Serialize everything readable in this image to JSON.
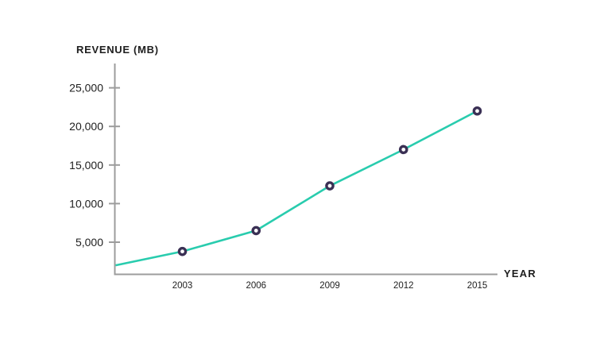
{
  "chart_data": {
    "type": "line",
    "title": "REVENUE (MB)",
    "xlabel": "YEAR",
    "ylabel": "REVENUE (MB)",
    "categories": [
      "2003",
      "2006",
      "2009",
      "2012",
      "2015"
    ],
    "series": [
      {
        "name": "Revenue (MB)",
        "values": [
          3800,
          6500,
          12300,
          17000,
          22000
        ]
      }
    ],
    "axis_edge_start_value": 2000,
    "yticks": [
      5000,
      10000,
      15000,
      20000,
      25000
    ],
    "ytick_labels": [
      "5,000",
      "10,000",
      "15,000",
      "20,000",
      "25,000"
    ],
    "ylim": [
      0,
      27000
    ],
    "grid": false,
    "legend_position": "none",
    "marker_style": "open-circle",
    "colors": {
      "line": "#29ccae",
      "marker_ring": "#3a3054",
      "marker_fill": "#ffffff",
      "axis": "#9c9c9c",
      "text": "#1e1e1e"
    }
  }
}
